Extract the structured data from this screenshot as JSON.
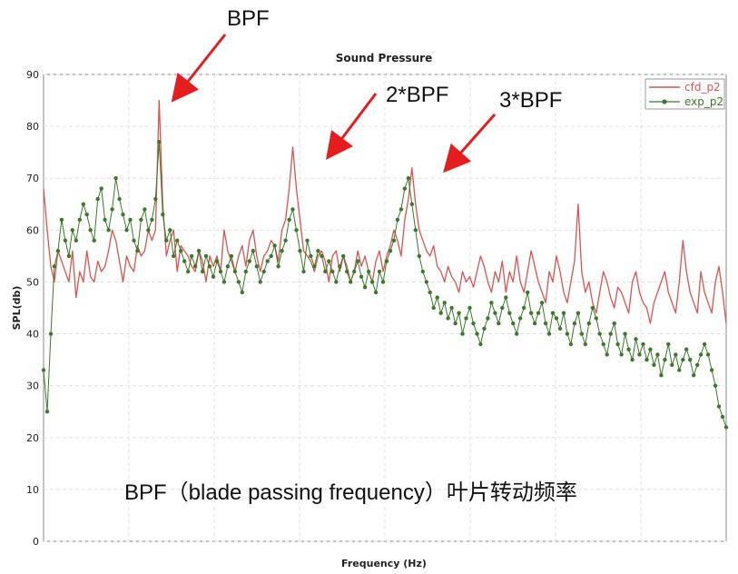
{
  "chart_data": {
    "type": "line",
    "title": "Sound Pressure",
    "xlabel": "Frequency (Hz)",
    "ylabel": "SPL(db)",
    "ylim": [
      0,
      90
    ],
    "yticks": [
      0,
      10,
      20,
      30,
      40,
      50,
      60,
      70,
      80,
      90
    ],
    "x_tick_labels_visible": false,
    "grid": true,
    "legend_position": "top-right",
    "colors": {
      "cfd_p2": "#d9534f",
      "exp_p2": "#3a7a2a"
    },
    "series": [
      {
        "name": "cfd_p2",
        "style": "line",
        "values": [
          68,
          60,
          53,
          50,
          56,
          54,
          52,
          50,
          56,
          47,
          52,
          50,
          56,
          51,
          50,
          54,
          52,
          53,
          56,
          60,
          58,
          54,
          50,
          55,
          53,
          52,
          57,
          55,
          56,
          60,
          58,
          60,
          85,
          65,
          55,
          58,
          60,
          52,
          57,
          56,
          55,
          53,
          52,
          56,
          54,
          50,
          55,
          53,
          55,
          52,
          60,
          56,
          54,
          52,
          55,
          57,
          53,
          58,
          60,
          55,
          52,
          55,
          56,
          58,
          57,
          54,
          60,
          62,
          68,
          76,
          68,
          62,
          56,
          55,
          54,
          52,
          55,
          56,
          54,
          50,
          55,
          56,
          52,
          55,
          53,
          50,
          52,
          56,
          53,
          55,
          52,
          50,
          54,
          56,
          52,
          55,
          57,
          60,
          58,
          55,
          62,
          66,
          72,
          65,
          60,
          58,
          56,
          55,
          57,
          53,
          52,
          50,
          53,
          51,
          50,
          48,
          52,
          50,
          51,
          49,
          52,
          55,
          53,
          50,
          48,
          52,
          50,
          54,
          48,
          52,
          50,
          55,
          50,
          48,
          52,
          56,
          53,
          50,
          48,
          46,
          52,
          50,
          55,
          52,
          48,
          46,
          50,
          54,
          65,
          52,
          48,
          50,
          46,
          44,
          48,
          52,
          50,
          47,
          45,
          49,
          48,
          46,
          44,
          50,
          52,
          48,
          46,
          45,
          42,
          46,
          48,
          50,
          52,
          48,
          46,
          44,
          50,
          58,
          52,
          48,
          46,
          44,
          52,
          48,
          46,
          44,
          50,
          53,
          48,
          42
        ],
        "description_peaks": "BPF, 2*BPF, 3*BPF"
      },
      {
        "name": "exp_p2",
        "style": "line-markers",
        "values": [
          33,
          25,
          40,
          53,
          56,
          62,
          58,
          55,
          60,
          58,
          62,
          65,
          63,
          60,
          58,
          66,
          68,
          62,
          60,
          64,
          70,
          66,
          63,
          60,
          62,
          58,
          56,
          62,
          64,
          60,
          62,
          66,
          77,
          63,
          58,
          60,
          55,
          58,
          56,
          54,
          52,
          55,
          53,
          56,
          52,
          55,
          53,
          51,
          54,
          52,
          50,
          53,
          55,
          52,
          50,
          48,
          52,
          54,
          56,
          53,
          50,
          52,
          54,
          55,
          57,
          53,
          56,
          58,
          62,
          64,
          60,
          56,
          52,
          58,
          55,
          53,
          56,
          55,
          52,
          54,
          52,
          50,
          53,
          55,
          52,
          50,
          52,
          54,
          51,
          49,
          52,
          50,
          48,
          52,
          50,
          54,
          56,
          58,
          62,
          64,
          68,
          70,
          65,
          60,
          55,
          52,
          50,
          48,
          45,
          47,
          44,
          46,
          43,
          45,
          42,
          44,
          40,
          43,
          45,
          42,
          40,
          38,
          41,
          43,
          46,
          44,
          42,
          45,
          47,
          44,
          42,
          40,
          43,
          45,
          48,
          44,
          42,
          44,
          46,
          42,
          40,
          44,
          43,
          41,
          44,
          40,
          38,
          42,
          44,
          40,
          38,
          42,
          45,
          43,
          40,
          38,
          36,
          40,
          42,
          38,
          36,
          40,
          37,
          35,
          39,
          36,
          38,
          35,
          37,
          34,
          36,
          32,
          35,
          38,
          34,
          36,
          33,
          35,
          37,
          35,
          32,
          34,
          36,
          38,
          36,
          33,
          30,
          26,
          24,
          22
        ]
      }
    ],
    "annotations": [
      {
        "label": "BPF"
      },
      {
        "label": "2*BPF"
      },
      {
        "label": "3*BPF"
      }
    ],
    "caption": "BPF（blade passing frequency）叶片转动频率"
  }
}
